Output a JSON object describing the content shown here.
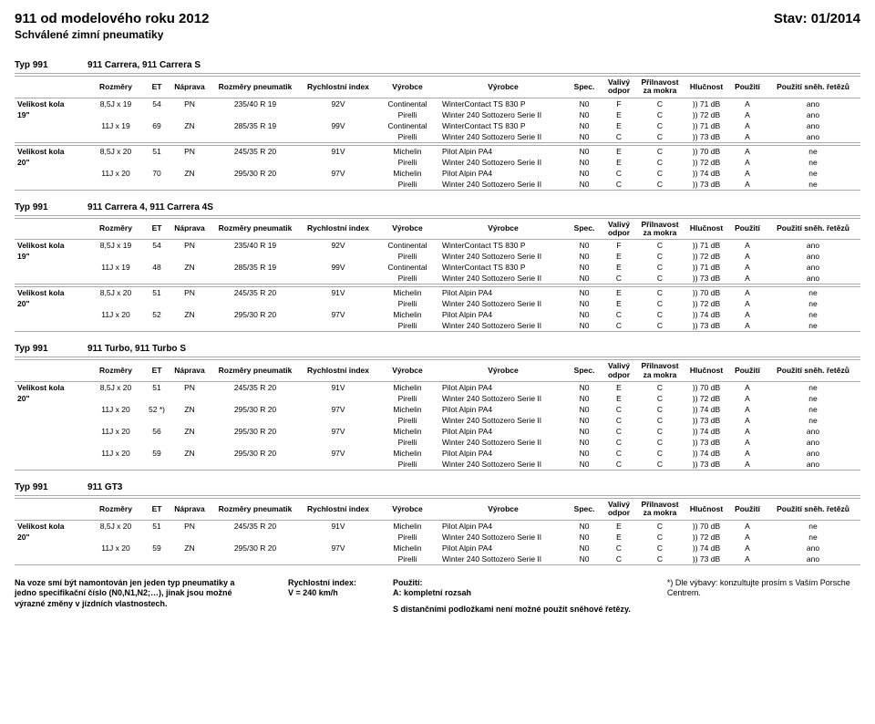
{
  "header": {
    "title": "911 od modelového roku 2012",
    "status": "Stav: 01/2014",
    "subtitle": "Schválené zimní pneumatiky"
  },
  "columns": {
    "c0": "",
    "c1": "Rozměry",
    "c2": "ET",
    "c3": "Náprava",
    "c4": "Rozměry pneumatik",
    "c5": "Rychlostní index",
    "c6": "Výrobce",
    "c7": "Výrobce",
    "c8": "Spec.",
    "c9a": "Valivý",
    "c9b": "odpor",
    "c10a": "Přilnavost",
    "c10b": "za mokra",
    "c11": "Hlučnost",
    "c12": "Použití",
    "c13": "Použití sněh. řetězů"
  },
  "labels": {
    "typ991": "Typ 991",
    "velikost": "Velikost kola",
    "s19": "19\"",
    "s20": "20\""
  },
  "sections": [
    {
      "model": "911 Carrera, 911 Carrera S",
      "groups": [
        {
          "wheel": "19\"",
          "rows": [
            {
              "r": [
                "8,5J x 19",
                "54",
                "PN",
                "235/40 R 19",
                "92V",
                "Continental",
                "WinterContact TS 830 P",
                "N0",
                "F",
                "C",
                ")) 71 dB",
                "A",
                "ano"
              ]
            },
            {
              "r": [
                "",
                "",
                "",
                "",
                "",
                "Pirelli",
                "Winter 240 Sottozero Serie II",
                "N0",
                "E",
                "C",
                ")) 72 dB",
                "A",
                "ano"
              ]
            },
            {
              "r": [
                "11J x 19",
                "69",
                "ZN",
                "285/35 R 19",
                "99V",
                "Continental",
                "WinterContact TS 830 P",
                "N0",
                "E",
                "C",
                ")) 71 dB",
                "A",
                "ano"
              ]
            },
            {
              "r": [
                "",
                "",
                "",
                "",
                "",
                "Pirelli",
                "Winter 240 Sottozero Serie II",
                "N0",
                "C",
                "C",
                ")) 73 dB",
                "A",
                "ano"
              ]
            }
          ]
        },
        {
          "wheel": "20\"",
          "rows": [
            {
              "r": [
                "8,5J x 20",
                "51",
                "PN",
                "245/35 R 20",
                "91V",
                "Michelin",
                "Pilot Alpin PA4",
                "N0",
                "E",
                "C",
                ")) 70 dB",
                "A",
                "ne"
              ]
            },
            {
              "r": [
                "",
                "",
                "",
                "",
                "",
                "Pirelli",
                "Winter 240 Sottozero Serie II",
                "N0",
                "E",
                "C",
                ")) 72 dB",
                "A",
                "ne"
              ]
            },
            {
              "r": [
                "11J x 20",
                "70",
                "ZN",
                "295/30 R 20",
                "97V",
                "Michelin",
                "Pilot Alpin PA4",
                "N0",
                "C",
                "C",
                ")) 74 dB",
                "A",
                "ne"
              ]
            },
            {
              "r": [
                "",
                "",
                "",
                "",
                "",
                "Pirelli",
                "Winter 240 Sottozero Serie II",
                "N0",
                "C",
                "C",
                ")) 73 dB",
                "A",
                "ne"
              ]
            }
          ]
        }
      ]
    },
    {
      "model": "911 Carrera 4, 911 Carrera 4S",
      "groups": [
        {
          "wheel": "19\"",
          "rows": [
            {
              "r": [
                "8,5J x 19",
                "54",
                "PN",
                "235/40 R 19",
                "92V",
                "Continental",
                "WinterContact TS 830 P",
                "N0",
                "F",
                "C",
                ")) 71 dB",
                "A",
                "ano"
              ]
            },
            {
              "r": [
                "",
                "",
                "",
                "",
                "",
                "Pirelli",
                "Winter 240 Sottozero Serie II",
                "N0",
                "E",
                "C",
                ")) 72 dB",
                "A",
                "ano"
              ]
            },
            {
              "r": [
                "11J x 19",
                "48",
                "ZN",
                "285/35 R 19",
                "99V",
                "Continental",
                "WinterContact TS 830 P",
                "N0",
                "E",
                "C",
                ")) 71 dB",
                "A",
                "ano"
              ]
            },
            {
              "r": [
                "",
                "",
                "",
                "",
                "",
                "Pirelli",
                "Winter 240 Sottozero Serie II",
                "N0",
                "C",
                "C",
                ")) 73 dB",
                "A",
                "ano"
              ]
            }
          ]
        },
        {
          "wheel": "20\"",
          "rows": [
            {
              "r": [
                "8,5J x 20",
                "51",
                "PN",
                "245/35 R 20",
                "91V",
                "Michelin",
                "Pilot Alpin PA4",
                "N0",
                "E",
                "C",
                ")) 70 dB",
                "A",
                "ne"
              ]
            },
            {
              "r": [
                "",
                "",
                "",
                "",
                "",
                "Pirelli",
                "Winter 240 Sottozero Serie II",
                "N0",
                "E",
                "C",
                ")) 72 dB",
                "A",
                "ne"
              ]
            },
            {
              "r": [
                "11J x 20",
                "52",
                "ZN",
                "295/30 R 20",
                "97V",
                "Michelin",
                "Pilot Alpin PA4",
                "N0",
                "C",
                "C",
                ")) 74 dB",
                "A",
                "ne"
              ]
            },
            {
              "r": [
                "",
                "",
                "",
                "",
                "",
                "Pirelli",
                "Winter 240 Sottozero Serie II",
                "N0",
                "C",
                "C",
                ")) 73 dB",
                "A",
                "ne"
              ]
            }
          ]
        }
      ]
    },
    {
      "model": "911 Turbo, 911 Turbo S",
      "groups": [
        {
          "wheel": "20\"",
          "rows": [
            {
              "r": [
                "8,5J x 20",
                "51",
                "PN",
                "245/35 R 20",
                "91V",
                "Michelin",
                "Pilot Alpin PA4",
                "N0",
                "E",
                "C",
                ")) 70 dB",
                "A",
                "ne"
              ]
            },
            {
              "r": [
                "",
                "",
                "",
                "",
                "",
                "Pirelli",
                "Winter 240 Sottozero Serie II",
                "N0",
                "E",
                "C",
                ")) 72 dB",
                "A",
                "ne"
              ]
            },
            {
              "r": [
                "11J x 20",
                "52 *)",
                "ZN",
                "295/30 R 20",
                "97V",
                "Michelin",
                "Pilot Alpin PA4",
                "N0",
                "C",
                "C",
                ")) 74 dB",
                "A",
                "ne"
              ]
            },
            {
              "r": [
                "",
                "",
                "",
                "",
                "",
                "Pirelli",
                "Winter 240 Sottozero Serie II",
                "N0",
                "C",
                "C",
                ")) 73 dB",
                "A",
                "ne"
              ]
            },
            {
              "r": [
                "11J x 20",
                "56",
                "ZN",
                "295/30 R 20",
                "97V",
                "Michelin",
                "Pilot Alpin PA4",
                "N0",
                "C",
                "C",
                ")) 74 dB",
                "A",
                "ano"
              ]
            },
            {
              "r": [
                "",
                "",
                "",
                "",
                "",
                "Pirelli",
                "Winter 240 Sottozero Serie II",
                "N0",
                "C",
                "C",
                ")) 73 dB",
                "A",
                "ano"
              ]
            },
            {
              "r": [
                "11J x 20",
                "59",
                "ZN",
                "295/30 R 20",
                "97V",
                "Michelin",
                "Pilot Alpin PA4",
                "N0",
                "C",
                "C",
                ")) 74 dB",
                "A",
                "ano"
              ]
            },
            {
              "r": [
                "",
                "",
                "",
                "",
                "",
                "Pirelli",
                "Winter 240 Sottozero Serie II",
                "N0",
                "C",
                "C",
                ")) 73 dB",
                "A",
                "ano"
              ]
            }
          ]
        }
      ]
    },
    {
      "model": "911 GT3",
      "groups": [
        {
          "wheel": "20\"",
          "rows": [
            {
              "r": [
                "8,5J x 20",
                "51",
                "PN",
                "245/35 R 20",
                "91V",
                "Michelin",
                "Pilot Alpin PA4",
                "N0",
                "E",
                "C",
                ")) 70 dB",
                "A",
                "ne"
              ]
            },
            {
              "r": [
                "",
                "",
                "",
                "",
                "",
                "Pirelli",
                "Winter 240 Sottozero Serie II",
                "N0",
                "E",
                "C",
                ")) 72 dB",
                "A",
                "ne"
              ]
            },
            {
              "r": [
                "11J x 20",
                "59",
                "ZN",
                "295/30 R 20",
                "97V",
                "Michelin",
                "Pilot Alpin PA4",
                "N0",
                "C",
                "C",
                ")) 74 dB",
                "A",
                "ano"
              ]
            },
            {
              "r": [
                "",
                "",
                "",
                "",
                "",
                "Pirelli",
                "Winter 240 Sottozero Serie II",
                "N0",
                "C",
                "C",
                ")) 73 dB",
                "A",
                "ano"
              ]
            }
          ]
        }
      ]
    }
  ],
  "footer": {
    "c1": "Na voze smí být namontován jen jeden typ pneumatiky a jedno specifikační číslo (N0,N1,N2;…), jinak jsou možné výrazné změny v jízdních vlastnostech.",
    "c2a": "Rychlostní index:",
    "c2b": "V = 240 km/h",
    "c3a": "Použití:",
    "c3b": "A: kompletní rozsah",
    "c3c": "S distančními podložkami není možné použít sněhové řetězy.",
    "c4": "*) Dle výbavy: konzultujte prosím s Vaším Porsche Centrem."
  },
  "style": {
    "col_widths": [
      "80px",
      "62px",
      "28px",
      "44px",
      "100px",
      "82px",
      "70px",
      "140px",
      "38px",
      "38px",
      "52px",
      "50px",
      "40px",
      "auto"
    ]
  }
}
